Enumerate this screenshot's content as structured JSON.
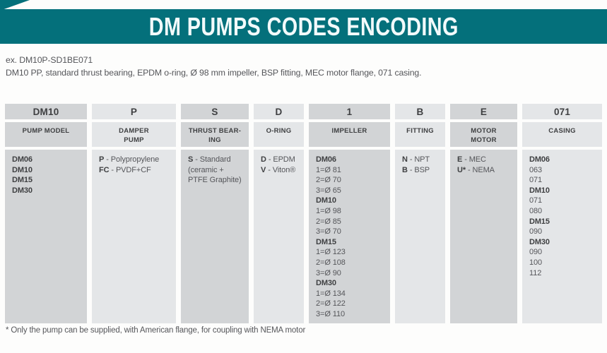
{
  "header": {
    "title": "DM PUMPS CODES ENCODING"
  },
  "example": {
    "code_line": "ex. DM10P-SD1BE071",
    "description": "DM10 PP, standard thrust bearing, EPDM o-ring, Ø 98 mm impeller, BSP fitting, MEC motor flange, 071 casing."
  },
  "footnote": {
    "text": "* Only the pump can be supplied, with American flange, for coupling with NEMA motor"
  },
  "colors": {
    "banner_teal": "#04707b",
    "cell_dark": "#d2d4d6",
    "cell_light": "#e4e6e8",
    "text_dark": "#3f4042",
    "text_gray": "#55565a"
  },
  "table": {
    "columns": [
      {
        "name": "pump-model",
        "code": "DM10",
        "label": "PUMP MODEL",
        "lines": [
          {
            "b": "DM06"
          },
          {
            "b": "DM10"
          },
          {
            "b": "DM15"
          },
          {
            "b": "DM30"
          }
        ]
      },
      {
        "name": "damper-pump",
        "code": "P",
        "label": "DAMPER\nPUMP",
        "lines": [
          {
            "b": "P",
            "t": " - Polypropylene"
          },
          {
            "b": "FC",
            "t": " - PVDF+CF"
          }
        ]
      },
      {
        "name": "thrust-bearing",
        "code": "S",
        "label": "THRUST BEAR-\nING",
        "lines": [
          {
            "b": "S",
            "t": " - Standard"
          },
          {
            "t": "(ceramic +"
          },
          {
            "t": "PTFE Graphite)"
          }
        ]
      },
      {
        "name": "o-ring",
        "code": "D",
        "label": "O-RING",
        "lines": [
          {
            "b": "D",
            "t": " - EPDM"
          },
          {
            "b": "V",
            "t": " - Viton®"
          }
        ]
      },
      {
        "name": "impeller",
        "code": "1",
        "label": "IMPELLER",
        "lines": [
          {
            "b": "DM06"
          },
          {
            "t": "1=Ø 81"
          },
          {
            "t": "2=Ø 70"
          },
          {
            "t": "3=Ø 65"
          },
          {
            "b": "DM10"
          },
          {
            "t": "1=Ø 98"
          },
          {
            "t": "2=Ø 85"
          },
          {
            "t": "3=Ø 70"
          },
          {
            "b": "DM15"
          },
          {
            "t": "1=Ø 123"
          },
          {
            "t": "2=Ø 108"
          },
          {
            "t": "3=Ø 90"
          },
          {
            "b": "DM30"
          },
          {
            "t": "1=Ø 134"
          },
          {
            "t": "2=Ø 122"
          },
          {
            "t": "3=Ø 110"
          }
        ]
      },
      {
        "name": "fitting",
        "code": "B",
        "label": "FITTING",
        "lines": [
          {
            "b": "N",
            "t": " - NPT"
          },
          {
            "b": "B",
            "t": " - BSP"
          }
        ]
      },
      {
        "name": "motor",
        "code": "E",
        "label": "MOTOR\nMOTOR",
        "lines": [
          {
            "b": "E",
            "t": " - MEC"
          },
          {
            "b": "U*",
            "t": " - NEMA"
          }
        ]
      },
      {
        "name": "casing",
        "code": "071",
        "label": "CASING",
        "lines": [
          {
            "b": "DM06"
          },
          {
            "t": "063"
          },
          {
            "t": "071"
          },
          {
            "b": "DM10"
          },
          {
            "t": "071"
          },
          {
            "t": "080"
          },
          {
            "b": "DM15"
          },
          {
            "t": "090"
          },
          {
            "b": "DM30"
          },
          {
            "t": "090"
          },
          {
            "t": "100"
          },
          {
            "t": "112"
          }
        ]
      }
    ]
  }
}
